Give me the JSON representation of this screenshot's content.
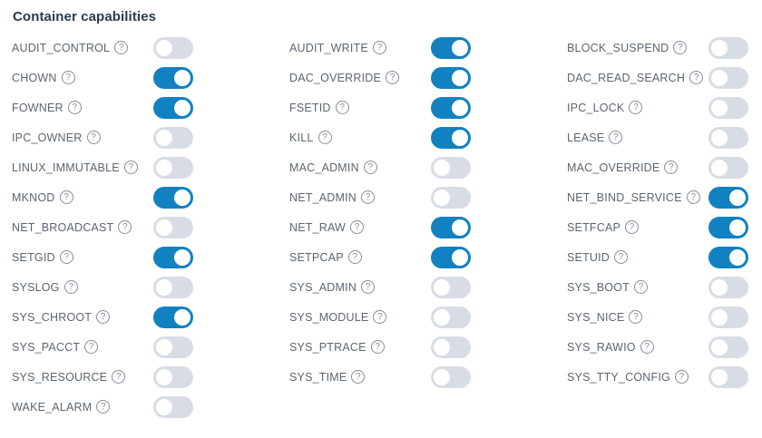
{
  "section": {
    "title": "Container capabilities"
  },
  "help_icon_glyph": "?",
  "colors": {
    "toggle_on": "#1181c2",
    "toggle_off": "#d8dce5",
    "knob": "#ffffff",
    "label_text": "#5b6670",
    "title_text": "#2b3950",
    "help_icon": "#848e99",
    "background": "#ffffff"
  },
  "columns": [
    {
      "items": [
        {
          "label": "AUDIT_CONTROL",
          "enabled": false
        },
        {
          "label": "CHOWN",
          "enabled": true
        },
        {
          "label": "FOWNER",
          "enabled": true
        },
        {
          "label": "IPC_OWNER",
          "enabled": false
        },
        {
          "label": "LINUX_IMMUTABLE",
          "enabled": false
        },
        {
          "label": "MKNOD",
          "enabled": true
        },
        {
          "label": "NET_BROADCAST",
          "enabled": false
        },
        {
          "label": "SETGID",
          "enabled": true
        },
        {
          "label": "SYSLOG",
          "enabled": false
        },
        {
          "label": "SYS_CHROOT",
          "enabled": true
        },
        {
          "label": "SYS_PACCT",
          "enabled": false
        },
        {
          "label": "SYS_RESOURCE",
          "enabled": false
        },
        {
          "label": "WAKE_ALARM",
          "enabled": false
        }
      ]
    },
    {
      "items": [
        {
          "label": "AUDIT_WRITE",
          "enabled": true
        },
        {
          "label": "DAC_OVERRIDE",
          "enabled": true
        },
        {
          "label": "FSETID",
          "enabled": true
        },
        {
          "label": "KILL",
          "enabled": true
        },
        {
          "label": "MAC_ADMIN",
          "enabled": false
        },
        {
          "label": "NET_ADMIN",
          "enabled": false
        },
        {
          "label": "NET_RAW",
          "enabled": true
        },
        {
          "label": "SETPCAP",
          "enabled": true
        },
        {
          "label": "SYS_ADMIN",
          "enabled": false
        },
        {
          "label": "SYS_MODULE",
          "enabled": false
        },
        {
          "label": "SYS_PTRACE",
          "enabled": false
        },
        {
          "label": "SYS_TIME",
          "enabled": false
        }
      ]
    },
    {
      "items": [
        {
          "label": "BLOCK_SUSPEND",
          "enabled": false
        },
        {
          "label": "DAC_READ_SEARCH",
          "enabled": false
        },
        {
          "label": "IPC_LOCK",
          "enabled": false
        },
        {
          "label": "LEASE",
          "enabled": false
        },
        {
          "label": "MAC_OVERRIDE",
          "enabled": false
        },
        {
          "label": "NET_BIND_SERVICE",
          "enabled": true
        },
        {
          "label": "SETFCAP",
          "enabled": true
        },
        {
          "label": "SETUID",
          "enabled": true
        },
        {
          "label": "SYS_BOOT",
          "enabled": false
        },
        {
          "label": "SYS_NICE",
          "enabled": false
        },
        {
          "label": "SYS_RAWIO",
          "enabled": false
        },
        {
          "label": "SYS_TTY_CONFIG",
          "enabled": false
        }
      ]
    }
  ]
}
